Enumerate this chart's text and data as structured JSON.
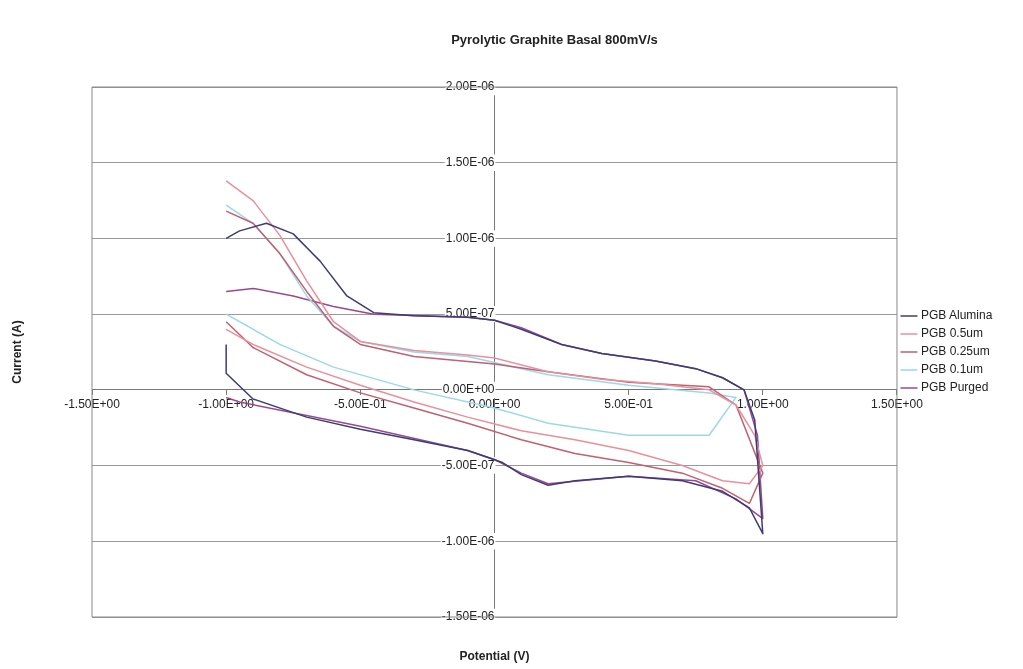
{
  "chart_data": {
    "type": "line",
    "title": "Pyrolytic Graphite Basal 800mV/s",
    "xlabel": "Potential (V)",
    "ylabel": "Current (A)",
    "xlim": [
      -1.5,
      1.5
    ],
    "ylim": [
      -1.5e-06,
      2e-06
    ],
    "xticks": [
      {
        "value": -1.5,
        "label": "-1.50E+00"
      },
      {
        "value": -1,
        "label": "-1.00E+00"
      },
      {
        "value": -0.5,
        "label": "-5.00E-01"
      },
      {
        "value": 0,
        "label": "0.00E+00"
      },
      {
        "value": 0.5,
        "label": "5.00E-01"
      },
      {
        "value": 1,
        "label": "1.00E+00"
      },
      {
        "value": 1.5,
        "label": "1.50E+00"
      }
    ],
    "yticks": [
      {
        "value": -1.5e-06,
        "label": "-1.50E-06"
      },
      {
        "value": -1e-06,
        "label": "-1.00E-06"
      },
      {
        "value": -5e-07,
        "label": "-5.00E-07"
      },
      {
        "value": 0,
        "label": "0.00E+00"
      },
      {
        "value": 5e-07,
        "label": "5.00E-07"
      },
      {
        "value": 1e-06,
        "label": "1.00E-06"
      },
      {
        "value": 1.5e-06,
        "label": "1.50E-06"
      },
      {
        "value": 2e-06,
        "label": "2.00E-06"
      }
    ],
    "grid": "y",
    "legend": "right",
    "marker": "none",
    "line_style": "solid",
    "series": [
      {
        "name": "PGB Alumina",
        "color": "#3c3c78",
        "x": [
          -1,
          -0.95,
          -0.85,
          -0.75,
          -0.65,
          -0.55,
          -0.45,
          -0.3,
          -0.1,
          0,
          0.1,
          0.25,
          0.4,
          0.6,
          0.75,
          0.85,
          0.93,
          0.97,
          1,
          0.95,
          0.85,
          0.7,
          0.5,
          0.3,
          0.2,
          0.1,
          0.03,
          -0.1,
          -0.3,
          -0.5,
          -0.7,
          -0.9,
          -1,
          -1
        ],
        "values": [
          1e-06,
          1.05e-06,
          1.1e-06,
          1.03e-06,
          8.5e-07,
          6.2e-07,
          5.1e-07,
          4.9e-07,
          4.8e-07,
          4.6e-07,
          4e-07,
          3e-07,
          2.4e-07,
          1.9e-07,
          1.4e-07,
          8e-08,
          0,
          -2e-07,
          -9.5e-07,
          -7.8e-07,
          -6.7e-07,
          -6e-07,
          -5.7e-07,
          -6e-07,
          -6.3e-07,
          -5.6e-07,
          -4.8e-07,
          -4e-07,
          -3.3e-07,
          -2.6e-07,
          -1.8e-07,
          -6e-08,
          1.1e-07,
          3e-07
        ]
      },
      {
        "name": "PGB 0.5um",
        "color": "#e8909c",
        "x": [
          -1,
          -0.9,
          -0.8,
          -0.7,
          -0.6,
          -0.5,
          -0.3,
          -0.1,
          0,
          0.2,
          0.4,
          0.6,
          0.8,
          0.9,
          0.97,
          1,
          0.95,
          0.85,
          0.7,
          0.5,
          0.3,
          0.1,
          -0.1,
          -0.3,
          -0.5,
          -0.7,
          -0.9,
          -1
        ],
        "values": [
          1.38e-06,
          1.25e-06,
          1.02e-06,
          7.2e-07,
          4.5e-07,
          3.2e-07,
          2.6e-07,
          2.3e-07,
          2.1e-07,
          1.2e-07,
          7e-08,
          4e-08,
          0,
          -1e-07,
          -3e-07,
          -5e-07,
          -6.2e-07,
          -6e-07,
          -5e-07,
          -4e-07,
          -3.3e-07,
          -2.7e-07,
          -1.8e-07,
          -8e-08,
          3e-08,
          1.5e-07,
          3e-07,
          4e-07
        ]
      },
      {
        "name": "PGB 0.25um",
        "color": "#c06070",
        "x": [
          -1,
          -0.9,
          -0.8,
          -0.7,
          -0.6,
          -0.5,
          -0.3,
          0,
          0.2,
          0.5,
          0.8,
          0.9,
          1,
          0.95,
          0.85,
          0.7,
          0.5,
          0.3,
          0.1,
          -0.1,
          -0.3,
          -0.5,
          -0.7,
          -0.9,
          -1
        ],
        "values": [
          1.18e-06,
          1.1e-06,
          9e-07,
          6.5e-07,
          4.2e-07,
          3e-07,
          2.2e-07,
          1.7e-07,
          1.2e-07,
          5e-08,
          2e-08,
          -1e-07,
          -5.5e-07,
          -7.5e-07,
          -6.5e-07,
          -5.5e-07,
          -4.8e-07,
          -4.2e-07,
          -3.3e-07,
          -2.2e-07,
          -1.2e-07,
          -2e-08,
          1e-07,
          2.8e-07,
          4.5e-07
        ]
      },
      {
        "name": "PGB 0.1um",
        "color": "#9ad8ea",
        "x": [
          -1,
          -0.9,
          -0.8,
          -0.7,
          -0.6,
          -0.5,
          -0.3,
          -0.1,
          0,
          0.2,
          0.5,
          0.8,
          0.9,
          0.8,
          0.5,
          0.2,
          0,
          -0.3,
          -0.6,
          -0.8,
          -1
        ],
        "values": [
          1.22e-06,
          1.1e-06,
          9e-07,
          6.2e-07,
          4.2e-07,
          3.2e-07,
          2.5e-07,
          2.2e-07,
          1.8e-07,
          1e-07,
          3e-08,
          -2e-08,
          -5e-08,
          -3e-07,
          -3e-07,
          -2.2e-07,
          -1.2e-07,
          0,
          1.5e-07,
          3e-07,
          5e-07
        ]
      },
      {
        "name": "PGB Purged",
        "color": "#9a4a8c",
        "x": [
          -1,
          -0.9,
          -0.75,
          -0.6,
          -0.45,
          -0.1,
          0,
          0.1,
          0.25,
          0.4,
          0.6,
          0.75,
          0.85,
          0.93,
          0.98,
          1,
          0.9,
          0.75,
          0.5,
          0.2,
          0.1,
          0,
          -0.1,
          -0.5,
          -0.7,
          -0.95,
          -1
        ],
        "values": [
          6.5e-07,
          6.7e-07,
          6.2e-07,
          5.5e-07,
          5e-07,
          4.8e-07,
          4.6e-07,
          4.1e-07,
          3e-07,
          2.4e-07,
          1.9e-07,
          1.4e-07,
          8e-08,
          0,
          -3e-07,
          -8.5e-07,
          -7.2e-07,
          -6e-07,
          -5.7e-07,
          -6.2e-07,
          -5.5e-07,
          -4.6e-07,
          -4e-07,
          -2.4e-07,
          -1.7e-07,
          -8e-08,
          -5e-08
        ]
      }
    ]
  }
}
